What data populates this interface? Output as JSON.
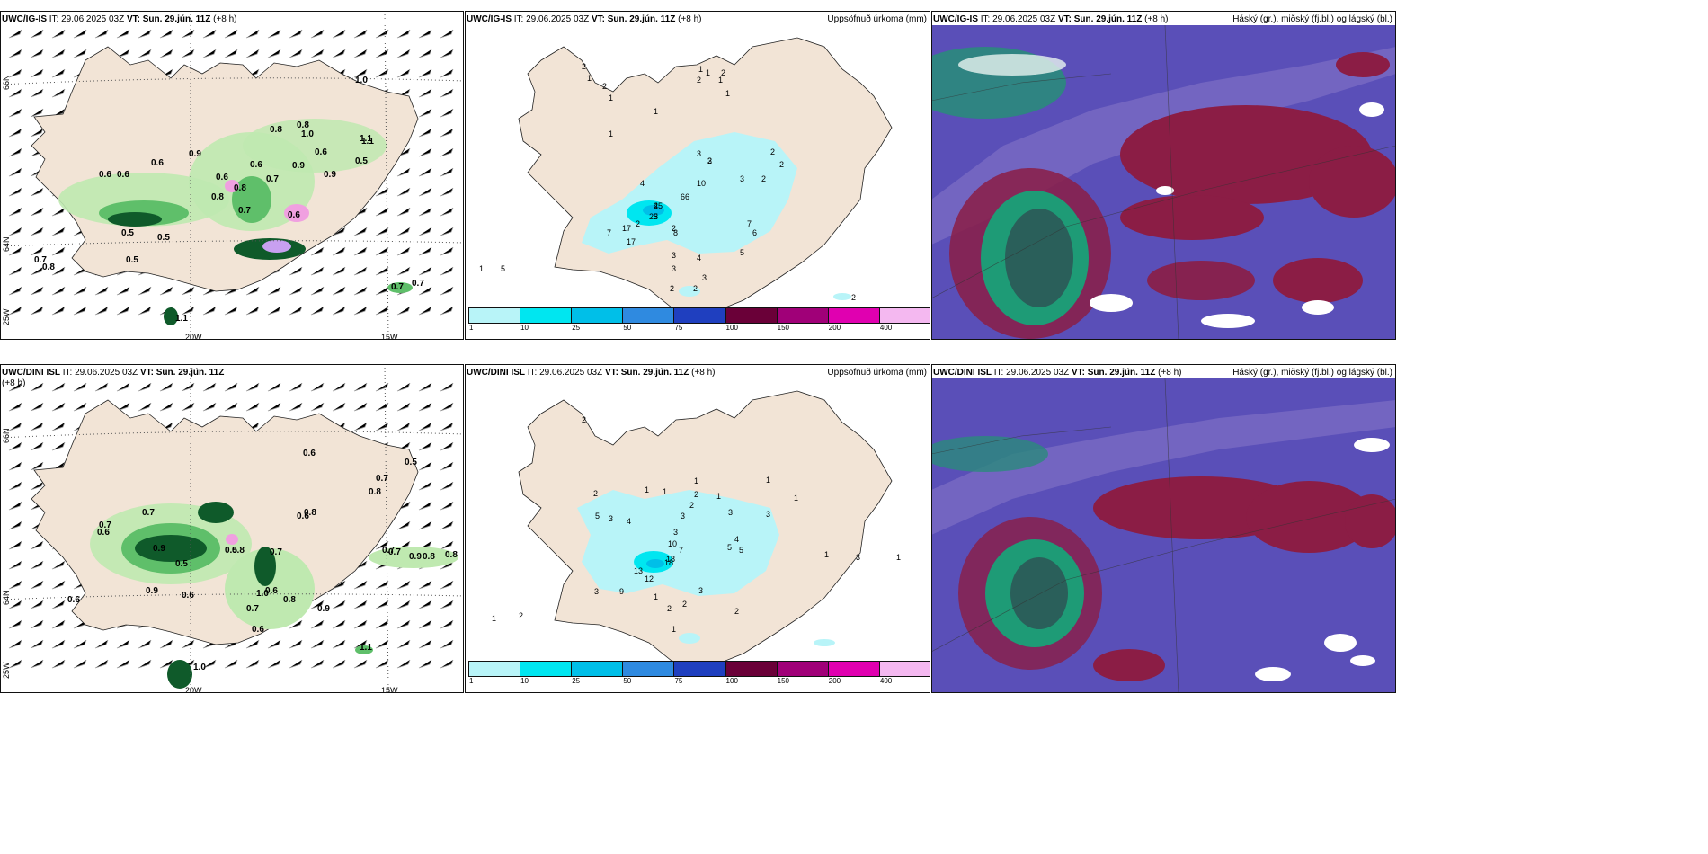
{
  "panels": {
    "p1": {
      "model": "UWC/IG-IS",
      "it_label": "IT:",
      "it": "29.06.2025 03Z",
      "vt_label": "VT:",
      "vt": "Sun. 29.jún. 11Z",
      "offset": "(+8 h)",
      "right_title": ""
    },
    "p2": {
      "model": "UWC/IG-IS",
      "it_label": "IT:",
      "it": "29.06.2025 03Z",
      "vt_label": "VT:",
      "vt": "Sun. 29.jún. 11Z",
      "offset": "(+8 h)",
      "right_title": "Uppsöfnuð úrkoma (mm)"
    },
    "p3": {
      "model": "UWC/IG-IS",
      "it_label": "IT:",
      "it": "29.06.2025 03Z",
      "vt_label": "VT:",
      "vt": "Sun. 29.jún. 11Z",
      "offset": "(+8 h)",
      "right_title": "Háský (gr.), miðský (fj.bl.) og lágský (bl.)"
    },
    "p4": {
      "model": "UWC/DINI ISL",
      "it_label": "IT:",
      "it": "29.06.2025 03Z",
      "vt_label": "VT:",
      "vt": "Sun. 29.jún. 11Z",
      "offset": "(+8 h)",
      "right_title": ""
    },
    "p5": {
      "model": "UWC/DINI ISL",
      "it_label": "IT:",
      "it": "29.06.2025 03Z",
      "vt_label": "VT:",
      "vt": "Sun. 29.jún. 11Z",
      "offset": "(+8 h)",
      "right_title": "Uppsöfnuð úrkoma (mm)"
    },
    "p6": {
      "model": "UWC/DINI ISL",
      "it_label": "IT:",
      "it": "29.06.2025 03Z",
      "vt_label": "VT:",
      "vt": "Sun. 29.jún. 11Z",
      "offset": "(+8 h)",
      "right_title": "Háský (gr.), miðský (fj.bl.) og lágský (bl.)"
    }
  },
  "grid_labels": {
    "lat66": "66N",
    "lat64": "64N",
    "lon20": "20W",
    "lon15": "15W",
    "lon25": "25W"
  },
  "precip_legend": {
    "ticks": [
      "1",
      "10",
      "25",
      "50",
      "75",
      "100",
      "150",
      "200",
      "400"
    ],
    "colors": [
      "#b8f4f8",
      "#00e6f0",
      "#00bfe8",
      "#2f8ae0",
      "#1f3fbf",
      "#6a0038",
      "#a00078",
      "#e000b0",
      "#f4b8f0"
    ]
  },
  "precip_values_top": [
    "2",
    "1",
    "2",
    "1",
    "1",
    "2",
    "1",
    "1",
    "1",
    "1",
    "2",
    "1",
    "3",
    "3",
    "2",
    "2",
    "2",
    "3",
    "4",
    "10",
    "6",
    "4",
    "3",
    "2",
    "2",
    "25",
    "25",
    "17",
    "17",
    "8",
    "7",
    "6",
    "7",
    "6",
    "5",
    "4",
    "3",
    "3",
    "3",
    "2",
    "2",
    "1",
    "1",
    "1",
    "5",
    "2",
    "2"
  ],
  "precip_values_bottom": [
    "2",
    "1",
    "2",
    "1",
    "1",
    "2",
    "1",
    "1",
    "1",
    "2",
    "5",
    "3",
    "4",
    "3",
    "3",
    "10",
    "7",
    "18",
    "18",
    "13",
    "12",
    "9",
    "3",
    "2",
    "5",
    "5",
    "4",
    "3",
    "3",
    "3",
    "1",
    "1",
    "3",
    "1",
    "2",
    "2",
    "1",
    "1",
    "2",
    "1"
  ],
  "wind_values_top": [
    "0.6",
    "1.0",
    "0.6",
    "1.1",
    "0.8",
    "0.9",
    "0.6",
    "0.6",
    "0.9",
    "0.6",
    "0.5",
    "0.9",
    "0.8",
    "1.0",
    "0.7",
    "0.8",
    "1.1",
    "0.6",
    "0.8",
    "0.7",
    "0.6",
    "0.5",
    "0.5",
    "0.7",
    "0.8",
    "0.5",
    "0.7",
    "1.1",
    "0.7"
  ],
  "wind_values_bottom": [
    "0.6",
    "0.6",
    "0.7",
    "0.5",
    "0.7",
    "0.8",
    "0.7",
    "0.6",
    "0.6",
    "0.8",
    "0.9",
    "0.5",
    "0.9",
    "0.8",
    "0.5",
    "0.7",
    "0.6",
    "0.6",
    "1.0",
    "0.8",
    "0.7",
    "0.9",
    "0.9",
    "0.8",
    "1.1",
    "0.7",
    "0.7",
    "0.6",
    "0.8",
    "1.0"
  ],
  "colors": {
    "land": "#f2e4d6",
    "coast": "#222222",
    "green_light": "#bfe9b0",
    "green_mid": "#5fbf6a",
    "green_dark": "#0f5a2a",
    "purple": "#c8a0f0",
    "magenta": "#f0a0e0",
    "cloud_high": "#8b1d45",
    "cloud_mid": "#6d5ab8",
    "cloud_low": "#1e9b76",
    "cloud_green": "#2fb86e"
  }
}
